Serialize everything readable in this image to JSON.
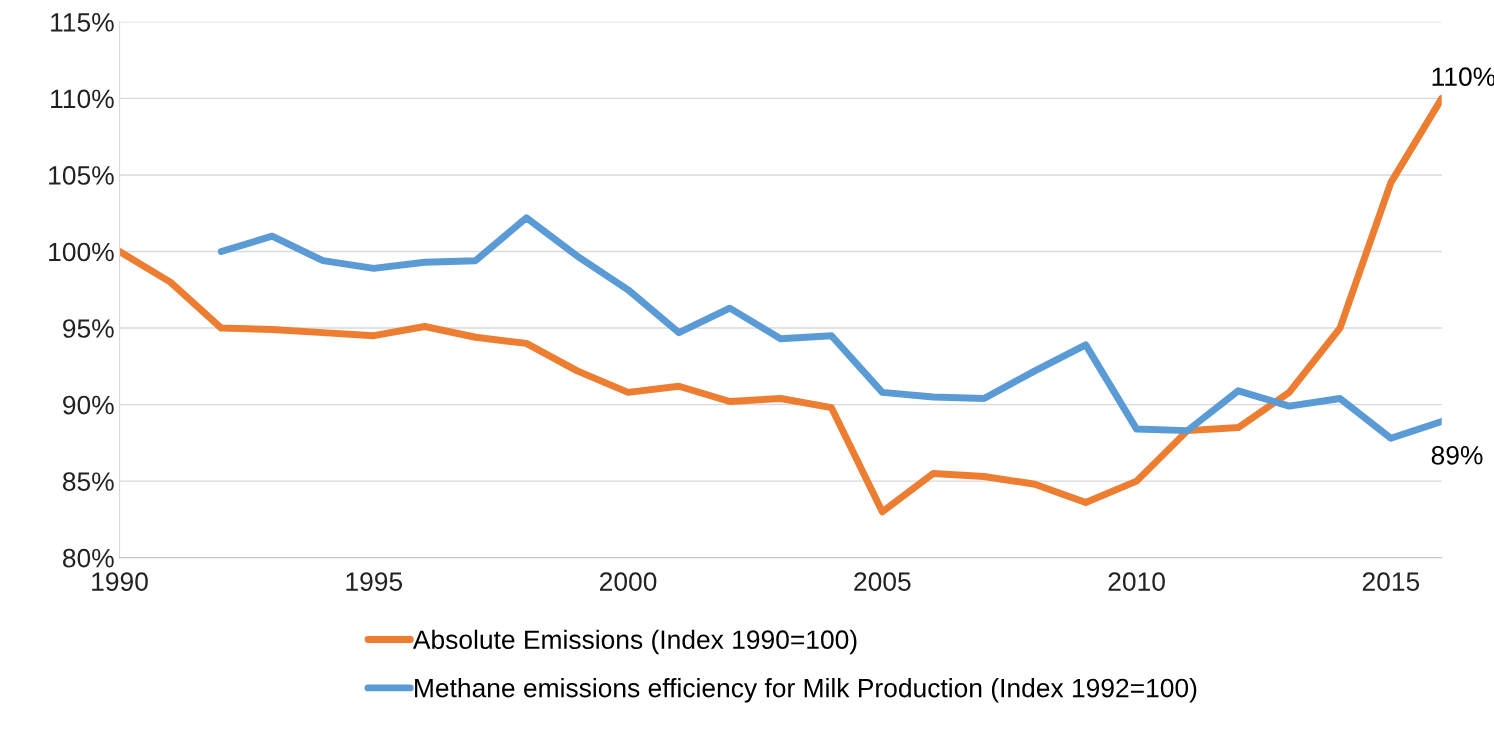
{
  "chart_data": {
    "type": "line",
    "x": [
      1990,
      1991,
      1992,
      1993,
      1994,
      1995,
      1996,
      1997,
      1998,
      1999,
      2000,
      2001,
      2002,
      2003,
      2004,
      2005,
      2006,
      2007,
      2008,
      2009,
      2010,
      2011,
      2012,
      2013,
      2014,
      2015,
      2016
    ],
    "series": [
      {
        "name": "Absolute Emissions (Index 1990=100)",
        "color": "#ed7d31",
        "values": [
          100,
          98.0,
          95.0,
          94.9,
          94.7,
          94.5,
          95.1,
          94.4,
          94.0,
          92.2,
          90.8,
          91.2,
          90.2,
          90.4,
          89.8,
          83.0,
          85.5,
          85.3,
          84.8,
          83.6,
          85.0,
          88.3,
          88.5,
          90.8,
          95.0,
          104.5,
          110
        ]
      },
      {
        "name": "Methane emissions efficiency for Milk Production (Index 1992=100)",
        "color": "#5b9bd5",
        "values": [
          null,
          null,
          100,
          101.0,
          99.4,
          98.9,
          99.3,
          99.4,
          102.2,
          99.7,
          97.5,
          94.7,
          96.3,
          94.3,
          94.5,
          90.8,
          90.5,
          90.4,
          92.2,
          93.9,
          88.4,
          88.3,
          90.9,
          89.9,
          90.4,
          87.8,
          88.9
        ]
      }
    ],
    "xlim": [
      1990,
      2016
    ],
    "xticks": [
      1990,
      1995,
      2000,
      2005,
      2010,
      2015
    ],
    "ylim": [
      80,
      115
    ],
    "yticks": [
      {
        "value": 80,
        "label": "80%"
      },
      {
        "value": 85,
        "label": "85%"
      },
      {
        "value": 90,
        "label": "90%"
      },
      {
        "value": 95,
        "label": "95%"
      },
      {
        "value": 100,
        "label": "100%"
      },
      {
        "value": 105,
        "label": "105%"
      },
      {
        "value": 110,
        "label": "110%"
      },
      {
        "value": 115,
        "label": "115%"
      }
    ],
    "annotations": [
      {
        "text": "110%",
        "x": 2016,
        "y": 110
      },
      {
        "text": "89%",
        "x": 2016,
        "y": 88.9
      }
    ],
    "grid": "y",
    "legend": "bottom",
    "marker": "none",
    "line_style": "solid"
  }
}
